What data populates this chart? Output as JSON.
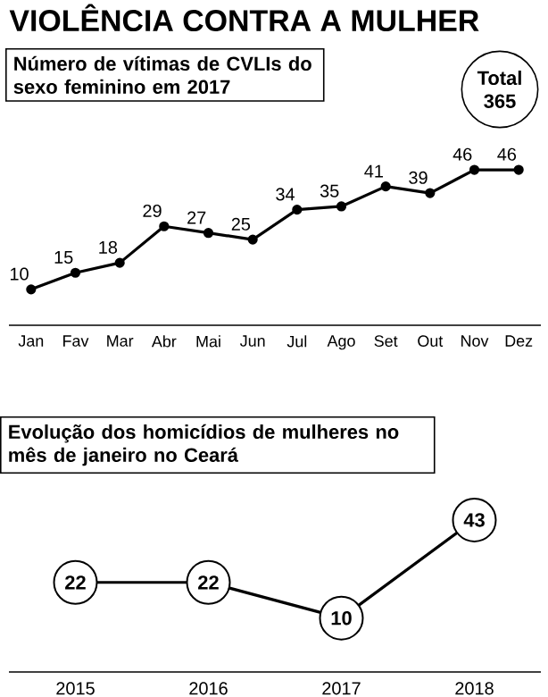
{
  "chart_data": [
    {
      "type": "line",
      "title": "VIOLÊNCIA CONTRA A MULHER",
      "subtitle": "Número de vítimas de CVLIs do sexo feminino em 2017",
      "annotations": [
        "Total 365"
      ],
      "categories": [
        "Jan",
        "Fav",
        "Mar",
        "Abr",
        "Mai",
        "Jun",
        "Jul",
        "Ago",
        "Set",
        "Out",
        "Nov",
        "Dez"
      ],
      "values": [
        10,
        15,
        18,
        29,
        27,
        25,
        34,
        35,
        41,
        39,
        46,
        46
      ],
      "color": "#000000",
      "marker": "circle",
      "data_labels": true
    },
    {
      "type": "line",
      "title": "Evolução dos homicídios de mulheres no mês de janeiro no Ceará",
      "categories": [
        "2015",
        "2016",
        "2017",
        "2018"
      ],
      "values": [
        22,
        22,
        10,
        43
      ],
      "color": "#000000",
      "marker": "circle",
      "data_labels": true
    }
  ]
}
